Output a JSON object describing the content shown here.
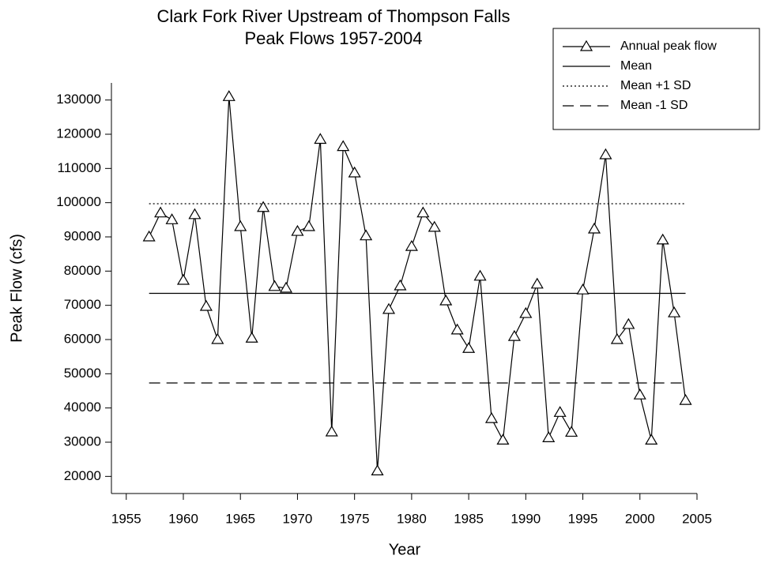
{
  "chart_data": {
    "type": "line",
    "title": "Clark Fork River Upstream of Thompson Falls",
    "subtitle": "Peak Flows 1957-2004",
    "xlabel": "Year",
    "ylabel": "Peak Flow (cfs)",
    "x": [
      1957,
      1958,
      1959,
      1960,
      1961,
      1962,
      1963,
      1964,
      1965,
      1966,
      1967,
      1968,
      1969,
      1970,
      1971,
      1972,
      1973,
      1974,
      1975,
      1976,
      1977,
      1978,
      1979,
      1980,
      1981,
      1982,
      1983,
      1984,
      1985,
      1986,
      1987,
      1988,
      1989,
      1990,
      1991,
      1992,
      1993,
      1994,
      1995,
      1996,
      1997,
      1998,
      1999,
      2000,
      2001,
      2002,
      2003,
      2004
    ],
    "series": [
      {
        "name": "Annual peak flow",
        "color": "#000000",
        "marker": "triangle",
        "values": [
          90000,
          97000,
          95000,
          77300,
          96500,
          69700,
          60000,
          131000,
          93000,
          60400,
          98600,
          75500,
          75000,
          91600,
          93000,
          118500,
          33000,
          116400,
          108700,
          90300,
          21600,
          68800,
          75700,
          87200,
          97000,
          92800,
          71300,
          62800,
          57400,
          78500,
          36900,
          30600,
          60900,
          67600,
          76200,
          31300,
          38700,
          32900,
          74500,
          92300,
          114000,
          60000,
          64400,
          43800,
          30600,
          89100,
          67800,
          42200
        ]
      }
    ],
    "reference_lines": [
      {
        "name": "Mean",
        "value": 73500,
        "style": "solid",
        "color": "#000000"
      },
      {
        "name": "Mean +1 SD",
        "value": 99700,
        "style": "dotted",
        "color": "#000000"
      },
      {
        "name": "Mean -1 SD",
        "value": 47300,
        "style": "dashed",
        "color": "#000000"
      }
    ],
    "xlim": [
      1953.7,
      2005
    ],
    "ylim": [
      15000,
      135000
    ],
    "xticks": [
      1955,
      1960,
      1965,
      1970,
      1975,
      1980,
      1985,
      1990,
      1995,
      2000,
      2005
    ],
    "yticks": [
      20000,
      30000,
      40000,
      50000,
      60000,
      70000,
      80000,
      90000,
      100000,
      110000,
      120000,
      130000
    ],
    "grid": false,
    "legend": "upper right"
  }
}
